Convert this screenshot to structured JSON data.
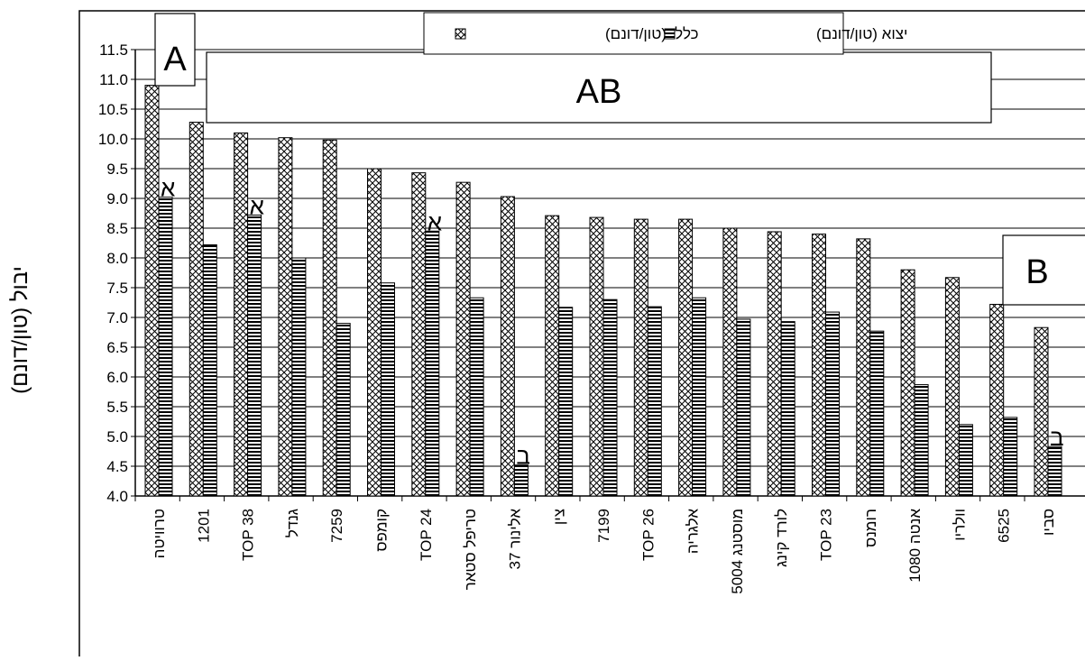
{
  "chart_data": {
    "type": "bar",
    "title": "",
    "xlabel": "",
    "ylabel": "יבול (טון/דונם)",
    "ylim": [
      4.0,
      11.5
    ],
    "yticks": [
      "4.0",
      "4.5",
      "5.0",
      "5.5",
      "6.0",
      "6.5",
      "7.0",
      "7.5",
      "8.0",
      "8.5",
      "9.0",
      "9.5",
      "10.0",
      "10.5",
      "11.0",
      "11.5"
    ],
    "grid": true,
    "legend_position": "top",
    "categories": [
      "טרוויטה",
      "1201",
      "TOP 38",
      "גנדל",
      "7259",
      "קומפס",
      "TOP 24",
      "טריפל סטאר",
      "אלינור 37",
      "צין",
      "7199",
      "TOP 26",
      "אלגריה",
      "מוסטנג 5004",
      "לורד קינג",
      "TOP 23",
      "רומנס",
      "אנטה 1080",
      "וולריו",
      "6525",
      "סביו"
    ],
    "series": [
      {
        "name": "כללי (טון/דונם)",
        "pattern": "crosshatch",
        "values": [
          10.9,
          10.28,
          10.1,
          10.02,
          9.98,
          9.5,
          9.43,
          9.27,
          9.03,
          8.71,
          8.68,
          8.65,
          8.65,
          8.5,
          8.44,
          8.4,
          8.32,
          7.8,
          7.67,
          7.22,
          6.83
        ]
      },
      {
        "name": "יצוא (טון/דונם)",
        "pattern": "horizontal-stripes",
        "values": [
          9.02,
          8.22,
          8.72,
          8.0,
          6.9,
          7.58,
          8.45,
          7.33,
          4.52,
          7.17,
          7.3,
          7.18,
          7.33,
          6.97,
          6.93,
          7.09,
          6.77,
          5.87,
          5.2,
          5.32,
          4.83
        ]
      }
    ],
    "annotations": {
      "boxes": [
        "A",
        "AB",
        "B"
      ],
      "letters": [
        {
          "category_index": 0,
          "text": "א"
        },
        {
          "category_index": 2,
          "text": "א"
        },
        {
          "category_index": 6,
          "text": "א"
        },
        {
          "category_index": 8,
          "text": "ב"
        },
        {
          "category_index": 20,
          "text": "ב"
        }
      ]
    },
    "colors": {
      "bar_fill": "#d9d9d9",
      "bar_stroke": "#000000",
      "grid": "#000000",
      "background": "#ffffff"
    }
  }
}
